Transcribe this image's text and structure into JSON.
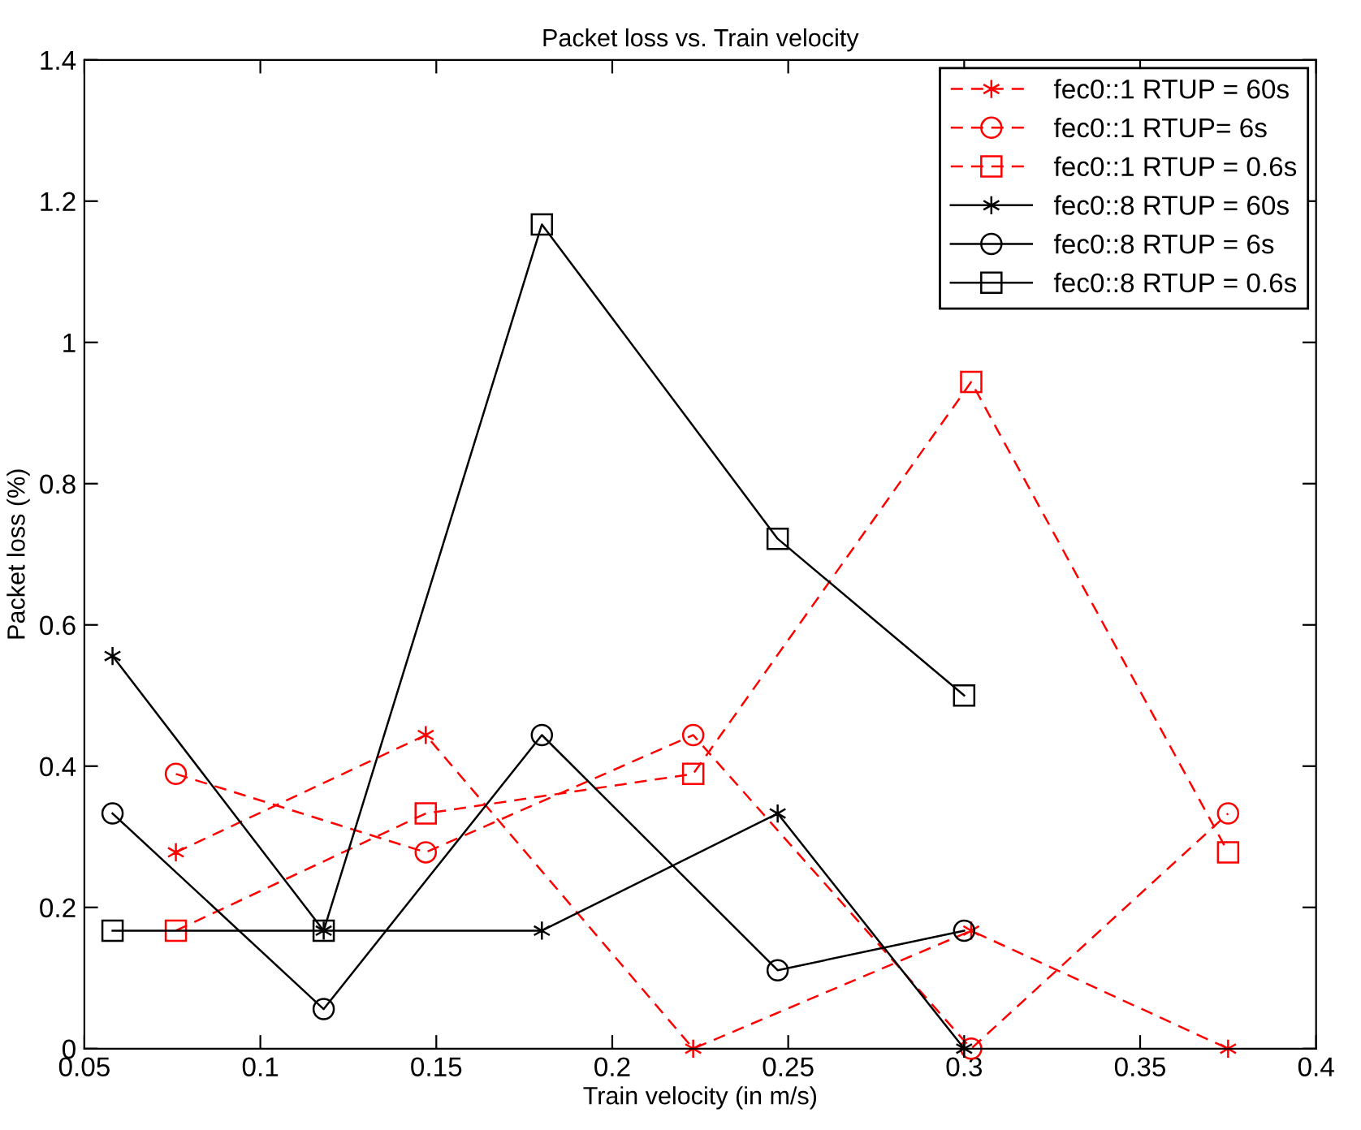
{
  "chart_data": {
    "type": "line",
    "title": "Packet loss vs. Train velocity",
    "xlabel": "Train velocity (in m/s)",
    "ylabel": "Packet loss (%)",
    "xlim": [
      0.05,
      0.4
    ],
    "xticks": [
      0.05,
      0.1,
      0.15,
      0.2,
      0.25,
      0.3,
      0.35,
      0.4
    ],
    "ylim": [
      0,
      1.4
    ],
    "yticks": [
      0,
      0.2,
      0.4,
      0.6,
      0.8,
      1,
      1.2,
      1.4
    ],
    "grid": false,
    "legend": "top right",
    "series": [
      {
        "name": "fec0::1 RTUP = 60s",
        "color": "#ff0000",
        "marker": "cross",
        "line_style": "dashed",
        "x": [
          0.076,
          0.147,
          0.223,
          0.302,
          0.375
        ],
        "values": [
          0.278,
          0.444,
          0,
          0.167,
          0
        ]
      },
      {
        "name": "fec0::1 RTUP= 6s",
        "color": "#ff0000",
        "marker": "circle",
        "line_style": "dashed",
        "x": [
          0.076,
          0.147,
          0.223,
          0.302,
          0.375
        ],
        "values": [
          0.389,
          0.278,
          0.444,
          0,
          0.333
        ]
      },
      {
        "name": "fec0::1 RTUP = 0.6s",
        "color": "#ff0000",
        "marker": "square",
        "line_style": "dashed",
        "x": [
          0.076,
          0.147,
          0.223,
          0.302,
          0.375
        ],
        "values": [
          0.167,
          0.333,
          0.389,
          0.944,
          0.278
        ]
      },
      {
        "name": "fec0::8 RTUP = 60s",
        "color": "#000000",
        "marker": "cross",
        "line_style": "solid",
        "x": [
          0.058,
          0.118,
          0.18,
          0.247,
          0.3
        ],
        "values": [
          0.556,
          0.167,
          0.167,
          0.333,
          0
        ]
      },
      {
        "name": "fec0::8 RTUP = 6s",
        "color": "#000000",
        "marker": "circle",
        "line_style": "solid",
        "x": [
          0.058,
          0.118,
          0.18,
          0.247,
          0.3
        ],
        "values": [
          0.333,
          0.056,
          0.444,
          0.111,
          0.167
        ]
      },
      {
        "name": "fec0::8 RTUP = 0.6s",
        "color": "#000000",
        "marker": "square",
        "line_style": "solid",
        "x": [
          0.058,
          0.118,
          0.18,
          0.247,
          0.3
        ],
        "values": [
          0.167,
          0.167,
          1.167,
          0.722,
          0.5
        ]
      }
    ]
  }
}
